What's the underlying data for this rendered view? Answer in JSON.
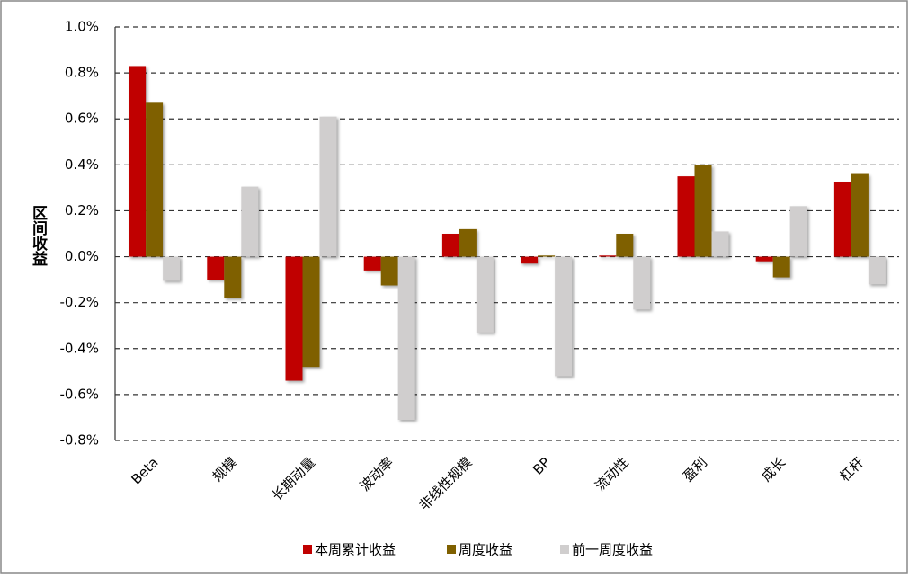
{
  "chart_data": {
    "type": "bar",
    "y_label": "区间收益",
    "categories": [
      "Beta",
      "规模",
      "长期动量",
      "波动率",
      "非线性规模",
      "BP",
      "流动性",
      "盈利",
      "成长",
      "杠杆"
    ],
    "series": [
      {
        "name": "本周累计收益",
        "color": "#c00000",
        "values": [
          0.83,
          -0.1,
          -0.54,
          -0.06,
          0.1,
          -0.03,
          0.005,
          0.35,
          -0.02,
          0.325
        ]
      },
      {
        "name": "周度收益",
        "color": "#7f6000",
        "values": [
          0.67,
          -0.18,
          -0.48,
          -0.125,
          0.12,
          0.005,
          0.1,
          0.4,
          -0.09,
          0.36
        ]
      },
      {
        "name": "前一周度收益",
        "color": "#d0cece",
        "values": [
          -0.105,
          0.305,
          0.61,
          -0.71,
          -0.33,
          -0.52,
          -0.23,
          0.11,
          0.22,
          -0.12
        ]
      }
    ],
    "ylim": [
      -0.8,
      1.0
    ],
    "yticks": [
      {
        "value": -0.8,
        "label": "-0.8%"
      },
      {
        "value": -0.6,
        "label": "-0.6%"
      },
      {
        "value": -0.4,
        "label": "-0.4%"
      },
      {
        "value": -0.2,
        "label": "-0.2%"
      },
      {
        "value": 0,
        "label": "0.0%"
      },
      {
        "value": 0.2,
        "label": "0.2%"
      },
      {
        "value": 0.4,
        "label": "0.4%"
      },
      {
        "value": 0.6,
        "label": "0.6%"
      },
      {
        "value": 0.8,
        "label": "0.8%"
      },
      {
        "value": 1.0,
        "label": "1.0%"
      }
    ],
    "grid": true
  }
}
